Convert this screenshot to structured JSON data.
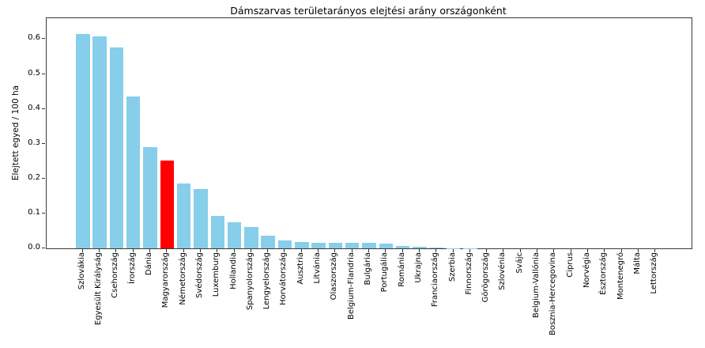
{
  "figure": {
    "title": "Dámszarvas területarányos elejtési arány országonként",
    "ylabel": "Elejtett egyed / 100 ha"
  },
  "chart_data": {
    "type": "bar",
    "title": "Dámszarvas területarányos elejtési arány országonként",
    "xlabel": "",
    "ylabel": "Elejtett egyed / 100 ha",
    "categories": [
      "Szlovákia",
      "Egyesült Királyság",
      "Csehország",
      "Írország",
      "Dánia",
      "Magyarország",
      "Németország",
      "Svédország",
      "Luxemburg",
      "Hollandia",
      "Spanyolország",
      "Lengyelország",
      "Horvátország",
      "Ausztria",
      "Litvánia",
      "Olaszország",
      "Belgium-Flandria",
      "Bulgária",
      "Portugália",
      "Románia",
      "Ukrajna",
      "Franciaország",
      "Szerbia",
      "Finnország",
      "Görögország",
      "Szlovénia",
      "Svájc",
      "Belgium-Vallónia",
      "Bosznia-Hercegovina",
      "Ciprus",
      "Norvégia",
      "Észtország",
      "Montenegró",
      "Málta",
      "Lettország"
    ],
    "values": [
      0.615,
      0.608,
      0.575,
      0.435,
      0.29,
      0.252,
      0.185,
      0.171,
      0.092,
      0.075,
      0.062,
      0.036,
      0.022,
      0.018,
      0.017,
      0.016,
      0.016,
      0.015,
      0.013,
      0.007,
      0.005,
      0.002,
      0.001,
      0.001,
      0,
      0,
      0,
      0,
      0,
      0,
      0,
      0,
      0,
      0,
      0
    ],
    "bar_color": "#87ceeb",
    "highlight_color": "#ff0000",
    "highlight_index": 5,
    "highlight_category": "Magyarország",
    "ylim": [
      0,
      0.66
    ],
    "yticks": [
      0.0,
      0.1,
      0.2,
      0.3,
      0.4,
      0.5,
      0.6
    ],
    "ytick_labels": [
      "0.0",
      "0.1",
      "0.2",
      "0.3",
      "0.4",
      "0.5",
      "0.6"
    ],
    "grid": false,
    "legend": null
  }
}
